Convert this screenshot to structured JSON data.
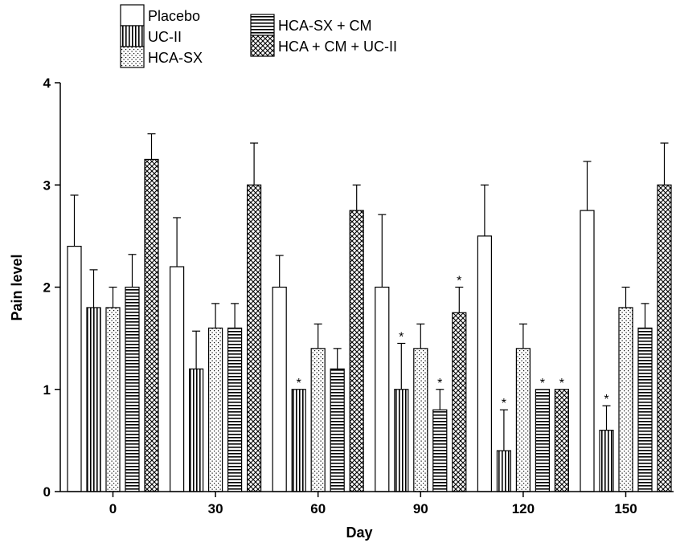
{
  "chart_data": {
    "type": "bar",
    "xlabel": "Day",
    "ylabel": "Pain level",
    "categories": [
      "0",
      "30",
      "60",
      "90",
      "120",
      "150"
    ],
    "ylim": [
      0,
      4
    ],
    "yticks": [
      "0",
      "1",
      "2",
      "3",
      "4"
    ],
    "grid": false,
    "legend_position": "top-left",
    "significance_marker": "*",
    "series": [
      {
        "name": "Placebo",
        "pattern": "blank",
        "values": [
          2.4,
          2.2,
          2.0,
          2.0,
          2.5,
          2.75
        ],
        "errors": [
          0.5,
          0.48,
          0.31,
          0.71,
          0.5,
          0.48
        ],
        "significant": [
          false,
          false,
          false,
          false,
          false,
          false
        ]
      },
      {
        "name": "UC-II",
        "pattern": "vertical-lines",
        "values": [
          1.8,
          1.2,
          1.0,
          1.0,
          0.4,
          0.6
        ],
        "errors": [
          0.37,
          0.37,
          0.0,
          0.45,
          0.4,
          0.24
        ],
        "significant": [
          false,
          false,
          true,
          true,
          true,
          true
        ]
      },
      {
        "name": "HCA-SX",
        "pattern": "dots",
        "values": [
          1.8,
          1.6,
          1.4,
          1.4,
          1.4,
          1.8
        ],
        "errors": [
          0.2,
          0.24,
          0.24,
          0.24,
          0.24,
          0.2
        ],
        "significant": [
          false,
          false,
          false,
          false,
          false,
          false
        ]
      },
      {
        "name": "HCA-SX + CM",
        "pattern": "horizontal-lines",
        "values": [
          2.0,
          1.6,
          1.2,
          0.8,
          1.0,
          1.6
        ],
        "errors": [
          0.32,
          0.24,
          0.2,
          0.2,
          0.0,
          0.24
        ],
        "significant": [
          false,
          false,
          false,
          true,
          true,
          false
        ]
      },
      {
        "name": "HCA + CM + UC-II",
        "pattern": "crosshatch",
        "values": [
          3.25,
          3.0,
          2.75,
          1.75,
          1.0,
          3.0
        ],
        "errors": [
          0.25,
          0.41,
          0.25,
          0.25,
          0.0,
          0.41
        ],
        "significant": [
          false,
          false,
          false,
          true,
          true,
          false
        ]
      }
    ]
  }
}
